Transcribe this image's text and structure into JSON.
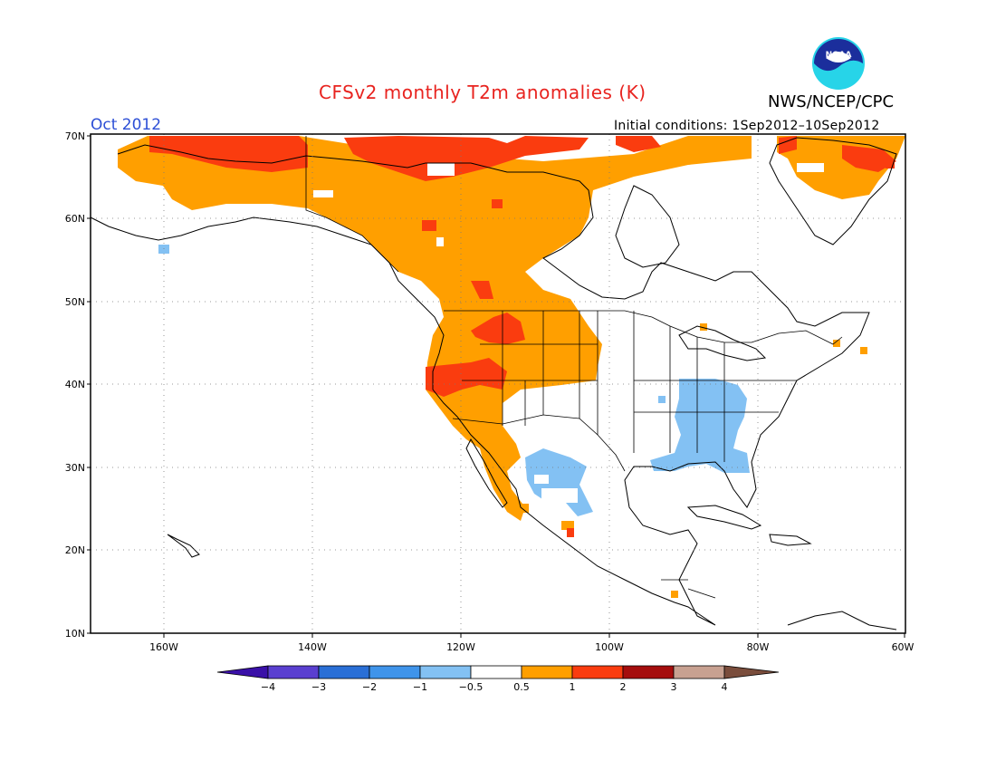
{
  "header": {
    "title": "CFSv2 monthly T2m anomalies (K)",
    "agency": "NWS/NCEP/CPC",
    "month": "Oct 2012",
    "initial_conditions": "Initial conditions: 1Sep2012–10Sep2012"
  },
  "logo": {
    "name": "noaa-logo",
    "text": "NOAA"
  },
  "axes": {
    "lat_labels": [
      "70N",
      "60N",
      "50N",
      "40N",
      "30N",
      "20N",
      "10N"
    ],
    "lon_labels": [
      "160W",
      "140W",
      "120W",
      "100W",
      "80W",
      "60W"
    ],
    "lat_range": [
      10,
      70
    ],
    "lon_range": [
      -172,
      -60
    ],
    "grid": "dotted"
  },
  "colorbar": {
    "labels": [
      "−4",
      "−3",
      "−2",
      "−1",
      "−0.5",
      "0.5",
      "1",
      "2",
      "3",
      "4"
    ],
    "colors": [
      "#3a10a8",
      "#5a3fd0",
      "#2a6fd6",
      "#3f94ea",
      "#83c1f3",
      "#ffffff",
      "#ff9f00",
      "#fa3c0f",
      "#a50d0d",
      "#c8a191",
      "#7a4d3c"
    ],
    "bins": [
      {
        "range": "< -4",
        "color": "#3a10a8"
      },
      {
        "range": "-4 to -3",
        "color": "#5a3fd0"
      },
      {
        "range": "-3 to -2",
        "color": "#2a6fd6"
      },
      {
        "range": "-2 to -1",
        "color": "#3f94ea"
      },
      {
        "range": "-1 to -0.5",
        "color": "#83c1f3"
      },
      {
        "range": "-0.5 to 0.5",
        "color": "#ffffff"
      },
      {
        "range": "0.5 to 1",
        "color": "#ff9f00"
      },
      {
        "range": "1 to 2",
        "color": "#fa3c0f"
      },
      {
        "range": "2 to 3",
        "color": "#a50d0d"
      },
      {
        "range": "3 to 4",
        "color": "#c8a191"
      },
      {
        "range": "> 4",
        "color": "#7a4d3c"
      }
    ]
  },
  "anomaly_colors": {
    "warm_0_5_to_1": "#ff9f00",
    "warm_1_to_2": "#fa3c0f",
    "cool_-1_to_-0_5": "#83c1f3"
  }
}
